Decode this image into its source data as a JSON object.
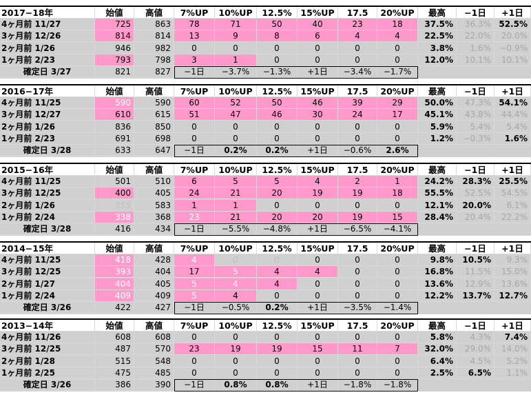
{
  "columns": [
    "始値",
    "高値",
    "7%UP",
    "10%UP",
    "12.5%",
    "15%UP",
    "17.5",
    "20%UP",
    "最高",
    "−1日",
    "+1日"
  ],
  "blocks": [
    {
      "year": "2017−18年",
      "rows": [
        {
          "label": "4ヶ月前 11/27",
          "v": [
            "725",
            "863",
            "78",
            "71",
            "50",
            "40",
            "23",
            "18",
            "37.5%",
            "36.3%",
            "52.5%"
          ],
          "hl": [
            0,
            2,
            3,
            4,
            5,
            6,
            7
          ],
          "gray": [
            9
          ]
        },
        {
          "label": "3ヶ月前 12/26",
          "v": [
            "814",
            "814",
            "13",
            "9",
            "8",
            "6",
            "4",
            "4",
            "22.5%",
            "22.0%",
            "20.0%"
          ],
          "hl": [
            0,
            2,
            3,
            4,
            5,
            6,
            7
          ],
          "gray": [
            9,
            10
          ]
        },
        {
          "label": "2ヶ月前 1/26",
          "v": [
            "946",
            "982",
            "0",
            "0",
            "0",
            "0",
            "0",
            "0",
            "3.8%",
            "1.6%",
            "−0.9%"
          ],
          "hl": [],
          "gray": [
            9,
            10
          ]
        },
        {
          "label": "1ヶ月前 2/23",
          "v": [
            "793",
            "798",
            "3",
            "1",
            "0",
            "0",
            "0",
            "0",
            "12.0%",
            "10.1%",
            "10.1%"
          ],
          "hl": [
            0,
            2,
            3
          ],
          "gray": [
            9,
            10
          ]
        }
      ],
      "final": {
        "label": "確定日 3/27",
        "v": [
          "821",
          "827",
          "−1日",
          "−3.7%",
          "−1.3%",
          "+1日",
          "−3.4%",
          "−1.7%"
        ]
      }
    },
    {
      "year": "2016−17年",
      "rows": [
        {
          "label": "4ヶ月前 11/25",
          "v": [
            "590",
            "590",
            "60",
            "52",
            "50",
            "46",
            "39",
            "29",
            "50.0%",
            "47.3%",
            "54.1%"
          ],
          "hl": [
            0,
            2,
            3,
            4,
            5,
            6,
            7
          ],
          "white": [
            0
          ],
          "gray": [
            9
          ]
        },
        {
          "label": "3ヶ月前 12/27",
          "v": [
            "610",
            "615",
            "51",
            "47",
            "46",
            "30",
            "24",
            "17",
            "45.1%",
            "43.8%",
            "44.4%"
          ],
          "hl": [
            0,
            2,
            3,
            4,
            5,
            6,
            7
          ],
          "gray": [
            9,
            10
          ]
        },
        {
          "label": "2ヶ月前 1/26",
          "v": [
            "836",
            "850",
            "0",
            "0",
            "0",
            "0",
            "0",
            "0",
            "5.9%",
            "5.4%",
            "5.4%"
          ],
          "hl": [],
          "gray": [
            9,
            10
          ]
        },
        {
          "label": "1ヶ月前 2/23",
          "v": [
            "691",
            "698",
            "0",
            "0",
            "0",
            "0",
            "0",
            "0",
            "1.2%",
            "−0.3%",
            "1.6%"
          ],
          "hl": [],
          "gray": [
            9
          ]
        }
      ],
      "final": {
        "label": "確定日 3/28",
        "v": [
          "633",
          "647",
          "−1日",
          "0.2%",
          "0.2%",
          "+1日",
          "−0.6%",
          "2.6%"
        ]
      }
    },
    {
      "year": "2015−16年",
      "rows": [
        {
          "label": "4ヶ月前 11/25",
          "v": [
            "501",
            "510",
            "6",
            "5",
            "5",
            "4",
            "2",
            "1",
            "24.2%",
            "28.3%",
            "25.5%"
          ],
          "hl": [
            2,
            3,
            4,
            5,
            6,
            7
          ],
          "gray": []
        },
        {
          "label": "3ヶ月前 12/25",
          "v": [
            "400",
            "405",
            "24",
            "21",
            "20",
            "19",
            "19",
            "18",
            "55.5%",
            "52.5%",
            "54.5%"
          ],
          "hl": [
            0,
            2,
            3,
            4,
            5,
            6,
            7
          ],
          "gray": [
            9,
            10
          ]
        },
        {
          "label": "2ヶ月前 1/26",
          "v": [
            "555",
            "583",
            "1",
            "1",
            "0",
            "0",
            "0",
            "0",
            "12.1%",
            "20.0%",
            "6.1%"
          ],
          "hl": [
            2,
            3
          ],
          "ital": [
            0
          ],
          "gray": [
            10
          ]
        },
        {
          "label": "1ヶ月前 2/24",
          "v": [
            "338",
            "368",
            "23",
            "21",
            "20",
            "20",
            "19",
            "15",
            "28.4%",
            "20.4%",
            "22.2%"
          ],
          "hl": [
            0,
            2,
            3,
            4,
            5,
            6,
            7
          ],
          "white": [
            0,
            2
          ],
          "gray": [
            9,
            10
          ]
        }
      ],
      "final": {
        "label": "確定日 3/28",
        "v": [
          "416",
          "434",
          "−1日",
          "−5.5%",
          "−4.8%",
          "+1日",
          "−6.5%",
          "−4.1%"
        ]
      }
    },
    {
      "year": "2014−15年",
      "rows": [
        {
          "label": "4ヶ月前 11/25",
          "v": [
            "418",
            "428",
            "4",
            "0",
            "0",
            "0",
            "0",
            "0",
            "9.8%",
            "10.5%",
            "9.3%"
          ],
          "hl": [
            0,
            2
          ],
          "white": [
            0,
            2
          ],
          "ital": [
            3,
            4
          ],
          "gray": [
            10
          ]
        },
        {
          "label": "3ヶ月前 12/25",
          "v": [
            "393",
            "404",
            "17",
            "5",
            "4",
            "4",
            "0",
            "0",
            "16.8%",
            "11.5%",
            "15.0%"
          ],
          "hl": [
            0,
            2,
            3,
            4,
            5
          ],
          "white": [
            0,
            3
          ],
          "gray": [
            9,
            10
          ]
        },
        {
          "label": "2ヶ月前 1/27",
          "v": [
            "404",
            "405",
            "5",
            "4",
            "4",
            "0",
            "0",
            "0",
            "13.6%",
            "12.9%",
            "13.6%"
          ],
          "hl": [
            0,
            2,
            3,
            4
          ],
          "white": [
            0,
            2,
            3
          ],
          "gray": [
            9,
            10
          ]
        },
        {
          "label": "1ヶ月前 2/24",
          "v": [
            "409",
            "409",
            "5",
            "4",
            "0",
            "0",
            "0",
            "0",
            "12.2%",
            "13.7%",
            "12.7%"
          ],
          "hl": [
            0,
            2,
            3
          ],
          "white": [
            0,
            2
          ],
          "gray": []
        }
      ],
      "final": {
        "label": "確定日 3/26",
        "v": [
          "422",
          "427",
          "−1日",
          "−0.5%",
          "0.2%",
          "+1日",
          "−3.5%",
          "−1.4%"
        ]
      }
    },
    {
      "year": "2013−14年",
      "rows": [
        {
          "label": "4ヶ月前 11/26",
          "v": [
            "608",
            "608",
            "0",
            "0",
            "0",
            "0",
            "0",
            "0",
            "5.8%",
            "4.3%",
            "7.4%"
          ],
          "hl": [],
          "gray": [
            9
          ]
        },
        {
          "label": "3ヶ月前 12/25",
          "v": [
            "487",
            "570",
            "23",
            "19",
            "19",
            "15",
            "11",
            "7",
            "32.0%",
            "29.0%",
            "14.0%"
          ],
          "hl": [
            2,
            3,
            4,
            5,
            6,
            7
          ],
          "gray": [
            9,
            10
          ]
        },
        {
          "label": "2ヶ月前 1/28",
          "v": [
            "515",
            "548",
            "0",
            "0",
            "0",
            "0",
            "0",
            "0",
            "6.4%",
            "4.5%",
            "5.2%"
          ],
          "hl": [],
          "gray": [
            9,
            10
          ]
        },
        {
          "label": "1ヶ月前 2/25",
          "v": [
            "475",
            "485",
            "0",
            "0",
            "0",
            "0",
            "0",
            "0",
            "2.5%",
            "6.5%",
            "1.1%"
          ],
          "hl": [],
          "gray": [
            10
          ]
        }
      ],
      "final": {
        "label": "確定日 3/26",
        "v": [
          "386",
          "390",
          "−1日",
          "0.8%",
          "0.8%",
          "+1日",
          "−1.8%",
          "−1.8%"
        ]
      }
    }
  ]
}
